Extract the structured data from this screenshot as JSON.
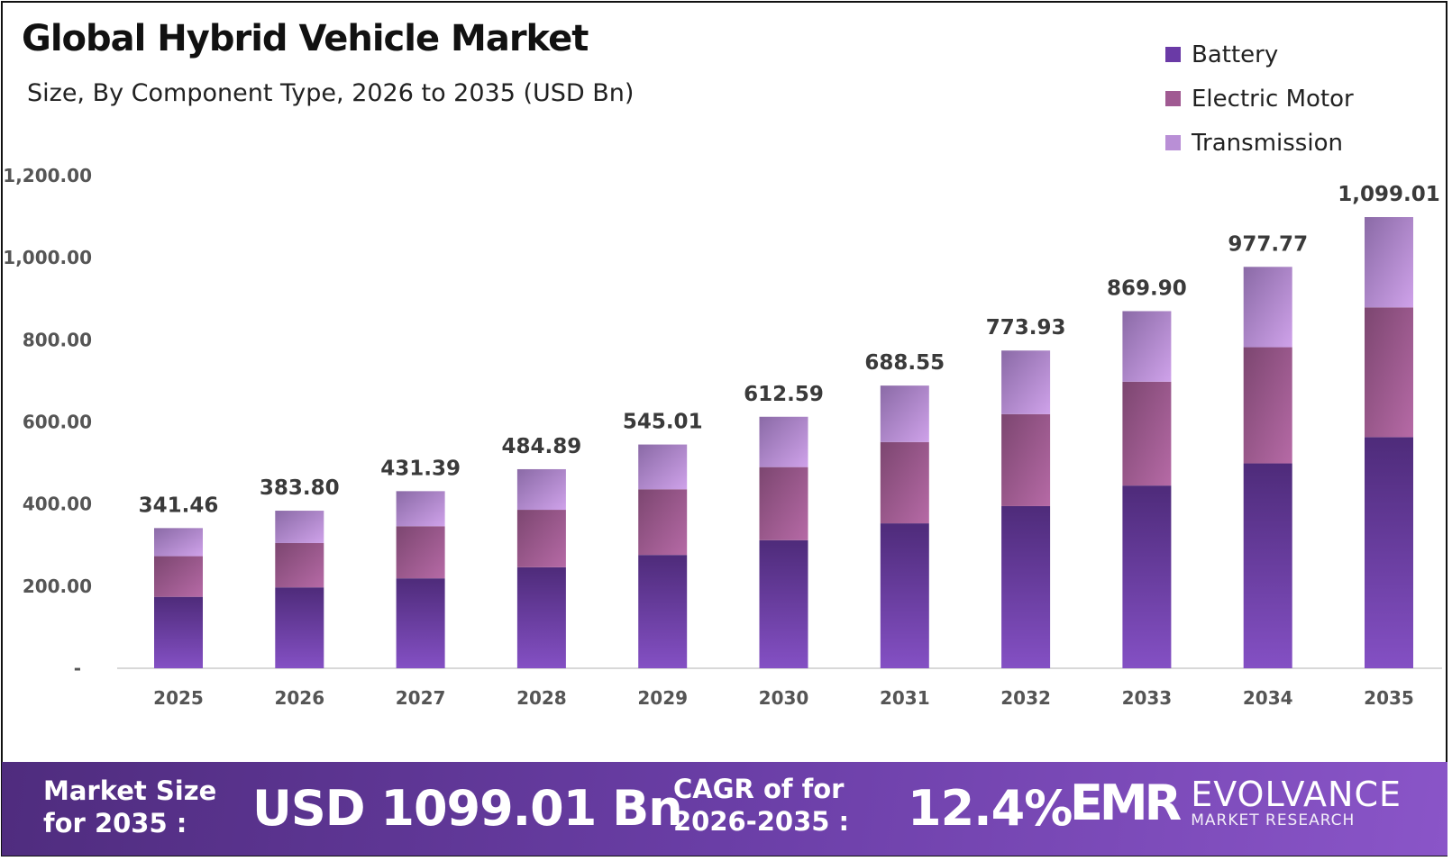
{
  "colors": {
    "battery": "#6a3aa6",
    "electric_motor": "#a05a92",
    "transmission": "#b98fd6",
    "banner": "#6a3ea6"
  },
  "chart_data": {
    "type": "bar",
    "stacked": true,
    "title": "Global Hybrid Vehicle Market",
    "subtitle": "Size, By Component Type, 2026 to 2035 (USD Bn)",
    "categories": [
      "2025",
      "2026",
      "2027",
      "2028",
      "2029",
      "2030",
      "2031",
      "2032",
      "2033",
      "2034",
      "2035"
    ],
    "series": [
      {
        "name": "Battery",
        "values": [
          174,
          197,
          219,
          246,
          276,
          312,
          353,
          395,
          445,
          499,
          563
        ]
      },
      {
        "name": "Electric Motor",
        "values": [
          99,
          108,
          127,
          140,
          160,
          178,
          198,
          224,
          253,
          283,
          316
        ]
      },
      {
        "name": "Transmission",
        "values": [
          68,
          79,
          85,
          99,
          109,
          122,
          138,
          155,
          172,
          196,
          220
        ]
      }
    ],
    "totals": [
      "341.46",
      "383.80",
      "431.39",
      "484.89",
      "545.01",
      "612.59",
      "688.55",
      "773.93",
      "869.90",
      "977.77",
      "1,099.01"
    ],
    "totals_values": [
      341.46,
      383.8,
      431.39,
      484.89,
      545.01,
      612.59,
      688.55,
      773.93,
      869.9,
      977.77,
      1099.01
    ],
    "yticks": [
      "-",
      "200.00",
      "400.00",
      "600.00",
      "800.00",
      "1,000.00",
      "1,200.00"
    ],
    "ytick_values": [
      0,
      200,
      400,
      600,
      800,
      1000,
      1200
    ],
    "ylim": [
      0,
      1200
    ],
    "grid": false,
    "legend_position": "top-right"
  },
  "banner": {
    "market_size_label_1": "Market Size",
    "market_size_label_2": "for 2035 :",
    "market_size_value": "USD 1099.01 Bn",
    "cagr_label_1": "CAGR of for",
    "cagr_label_2": "2026-2035 :",
    "cagr_value": "12.4%",
    "logo_mark": "EMR",
    "logo_name": "EVOLVANCE",
    "logo_tagline": "MARKET RESEARCH"
  }
}
